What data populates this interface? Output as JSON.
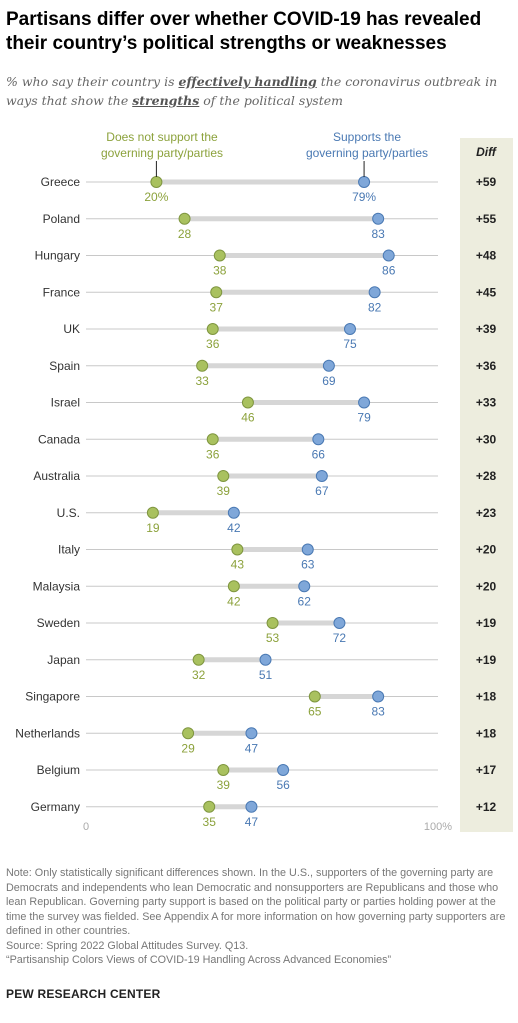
{
  "title": "Partisans differ over whether COVID-19 has revealed their country’s political strengths or weaknesses",
  "subtitle": {
    "part1": "% who say their country is ",
    "emph1": "effectively handling",
    "part2": " the coronavirus outbreak in ways that show the ",
    "emph2": "strengths",
    "part3": " of the political system"
  },
  "colors": {
    "nonsupport": "#a9c15f",
    "support": "#7fa7d9",
    "nonsupport_text": "#8ca23c",
    "support_text": "#4a79b3",
    "bar": "#d6d6d6",
    "diff_bg": "#ededde"
  },
  "chart_data": {
    "type": "dot",
    "legend": {
      "nonsupport": "Does not support the governing party/parties",
      "support": "Supports the governing party/parties"
    },
    "diff_header": "Diff",
    "xlim": [
      0,
      100
    ],
    "axis_labels": {
      "min": "0",
      "max": "100%"
    },
    "categories": [
      "Greece",
      "Poland",
      "Hungary",
      "France",
      "UK",
      "Spain",
      "Israel",
      "Canada",
      "Australia",
      "U.S.",
      "Italy",
      "Malaysia",
      "Sweden",
      "Japan",
      "Singapore",
      "Netherlands",
      "Belgium",
      "Germany"
    ],
    "series": [
      {
        "name": "Does not support the governing party/parties",
        "values": [
          20,
          28,
          38,
          37,
          36,
          33,
          46,
          36,
          39,
          19,
          43,
          42,
          53,
          32,
          65,
          29,
          39,
          35
        ]
      },
      {
        "name": "Supports the governing party/parties",
        "values": [
          79,
          83,
          86,
          82,
          75,
          69,
          79,
          66,
          67,
          42,
          63,
          62,
          72,
          51,
          83,
          47,
          56,
          47
        ]
      }
    ],
    "value_labels": {
      "nonsupport": [
        "20%",
        "28",
        "38",
        "37",
        "36",
        "33",
        "46",
        "36",
        "39",
        "19",
        "43",
        "42",
        "53",
        "32",
        "65",
        "29",
        "39",
        "35"
      ],
      "support": [
        "79%",
        "83",
        "86",
        "82",
        "75",
        "69",
        "79",
        "66",
        "67",
        "42",
        "63",
        "62",
        "72",
        "51",
        "83",
        "47",
        "56",
        "47"
      ]
    },
    "diff": [
      "+59",
      "+55",
      "+48",
      "+45",
      "+39",
      "+36",
      "+33",
      "+30",
      "+28",
      "+23",
      "+20",
      "+20",
      "+19",
      "+19",
      "+18",
      "+18",
      "+17",
      "+12"
    ]
  },
  "note": "Note: Only statistically significant differences shown. In the U.S., supporters of the governing party are Democrats and independents who lean Democratic and nonsupporters are Republicans and those who lean Republican. Governing party support is based on the political party or parties holding power at the time the survey was fielded. See Appendix A for more information on how governing party supporters are defined in other countries.",
  "source": "Source: Spring 2022 Global Attitudes Survey. Q13.",
  "report": "“Partisanship Colors Views of COVID-19 Handling Across Advanced Economies”",
  "brand": "PEW RESEARCH CENTER"
}
